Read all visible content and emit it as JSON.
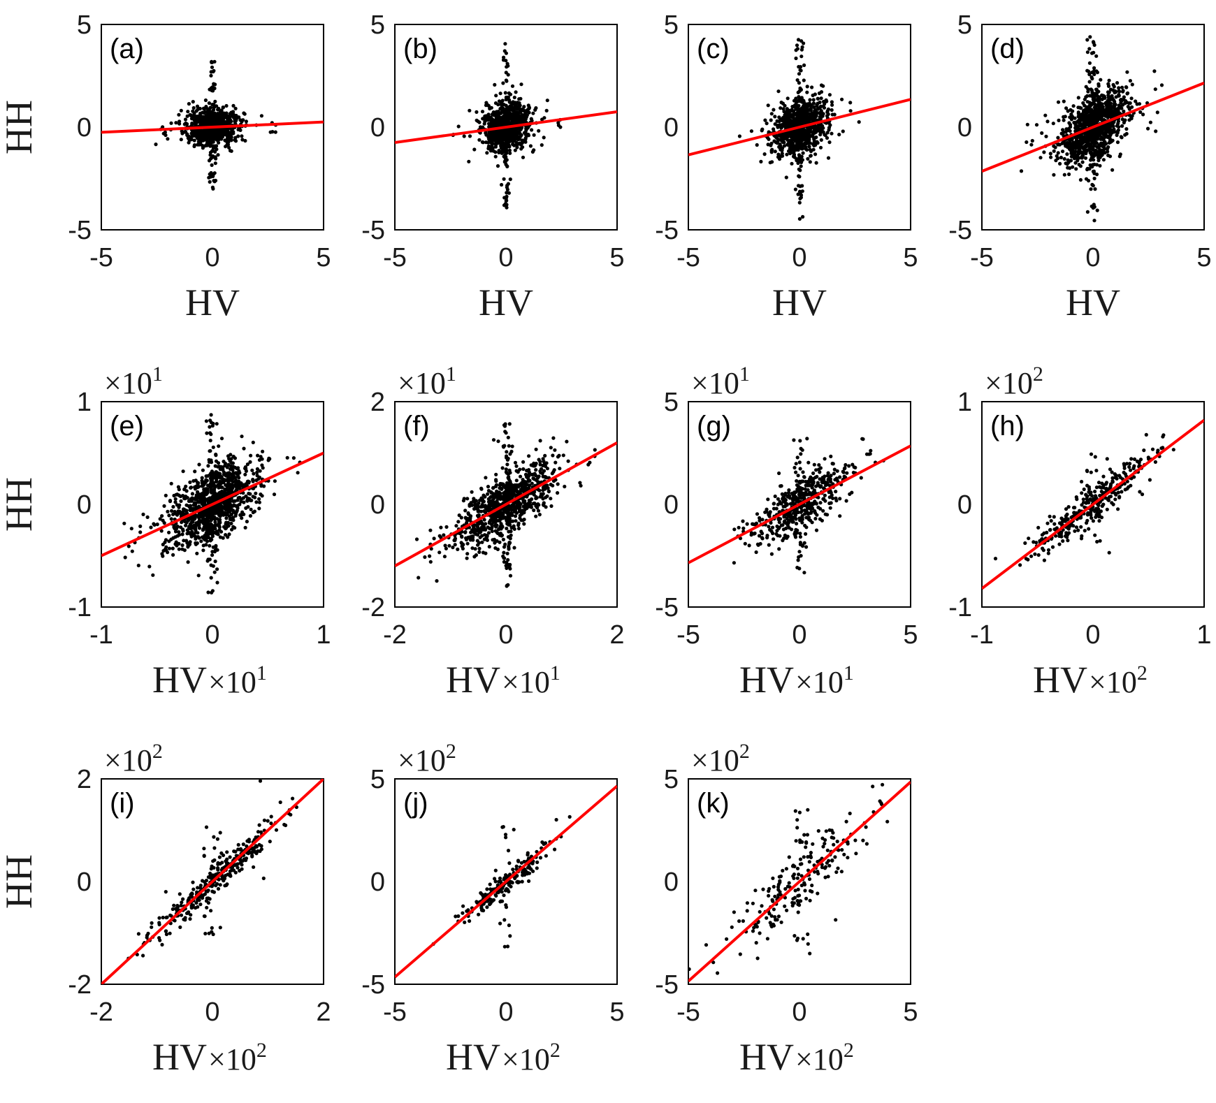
{
  "figure": {
    "y_label": "HH",
    "x_label": "HV"
  },
  "chart_data": [
    {
      "type": "scatter",
      "panel": "(a)",
      "xlim": [
        -5,
        5
      ],
      "ylim": [
        -5,
        5
      ],
      "xticks": [
        "-5",
        "0",
        "5"
      ],
      "yticks": [
        "-5",
        "0",
        "5"
      ],
      "xlabel": "HV",
      "ylabel": "HH",
      "x_exp": "",
      "y_exp": "",
      "fit": {
        "slope": 0.05,
        "intercept": 0.0
      },
      "cloud": {
        "sx": 0.55,
        "sy": 0.45,
        "rho": 0.1,
        "n": 900,
        "spike_y": 3.3,
        "spread_x": 3.0
      }
    },
    {
      "type": "scatter",
      "panel": "(b)",
      "xlim": [
        -5,
        5
      ],
      "ylim": [
        -5,
        5
      ],
      "xticks": [
        "-5",
        "0",
        "5"
      ],
      "yticks": [
        "-5",
        "0",
        "5"
      ],
      "xlabel": "HV",
      "ylabel": "",
      "x_exp": "",
      "y_exp": "",
      "fit": {
        "slope": 0.15,
        "intercept": 0.0
      },
      "cloud": {
        "sx": 0.5,
        "sy": 0.6,
        "rho": 0.2,
        "n": 900,
        "spike_y": 4.2,
        "spread_x": 2.8
      }
    },
    {
      "type": "scatter",
      "panel": "(c)",
      "xlim": [
        -5,
        5
      ],
      "ylim": [
        -5,
        5
      ],
      "xticks": [
        "-5",
        "0",
        "5"
      ],
      "yticks": [
        "-5",
        "0",
        "5"
      ],
      "xlabel": "HV",
      "ylabel": "",
      "x_exp": "",
      "y_exp": "",
      "fit": {
        "slope": 0.27,
        "intercept": 0.0
      },
      "cloud": {
        "sx": 0.6,
        "sy": 0.7,
        "rho": 0.3,
        "n": 900,
        "spike_y": 4.5,
        "spread_x": 2.8
      }
    },
    {
      "type": "scatter",
      "panel": "(d)",
      "xlim": [
        -5,
        5
      ],
      "ylim": [
        -5,
        5
      ],
      "xticks": [
        "-5",
        "0",
        "5"
      ],
      "yticks": [
        "-5",
        "0",
        "5"
      ],
      "xlabel": "HV",
      "ylabel": "",
      "x_exp": "",
      "y_exp": "",
      "fit": {
        "slope": 0.43,
        "intercept": 0.0
      },
      "cloud": {
        "sx": 0.75,
        "sy": 0.9,
        "rho": 0.45,
        "n": 1100,
        "spike_y": 4.6,
        "spread_x": 3.3
      }
    },
    {
      "type": "scatter",
      "panel": "(e)",
      "xlim": [
        -1,
        1
      ],
      "ylim": [
        -1,
        1
      ],
      "xticks": [
        "-1",
        "0",
        "1"
      ],
      "yticks": [
        "-1",
        "0",
        "1"
      ],
      "xlabel": "HV",
      "ylabel": "HH",
      "x_exp": "1",
      "y_exp": "1",
      "fit": {
        "slope": 0.5,
        "intercept": 0.0
      },
      "cloud": {
        "sx": 0.2,
        "sy": 0.2,
        "rho": 0.55,
        "n": 1100,
        "spike_y": 0.9,
        "spread_x": 0.8
      }
    },
    {
      "type": "scatter",
      "panel": "(f)",
      "xlim": [
        -2,
        2
      ],
      "ylim": [
        -2,
        2
      ],
      "xticks": [
        "-2",
        "0",
        "2"
      ],
      "yticks": [
        "-2",
        "0",
        "2"
      ],
      "xlabel": "HV",
      "ylabel": "",
      "x_exp": "1",
      "y_exp": "1",
      "fit": {
        "slope": 0.6,
        "intercept": 0.0
      },
      "cloud": {
        "sx": 0.45,
        "sy": 0.4,
        "rho": 0.7,
        "n": 900,
        "spike_y": 1.6,
        "spread_x": 1.6
      }
    },
    {
      "type": "scatter",
      "panel": "(g)",
      "xlim": [
        -5,
        5
      ],
      "ylim": [
        -5,
        5
      ],
      "xticks": [
        "-5",
        "0",
        "5"
      ],
      "yticks": [
        "-5",
        "0",
        "5"
      ],
      "xlabel": "HV",
      "ylabel": "",
      "x_exp": "1",
      "y_exp": "1",
      "fit": {
        "slope": 0.57,
        "intercept": 0.0
      },
      "cloud": {
        "sx": 1.1,
        "sy": 1.0,
        "rho": 0.75,
        "n": 500,
        "spike_y": 3.4,
        "spread_x": 4.5
      }
    },
    {
      "type": "scatter",
      "panel": "(h)",
      "xlim": [
        -1,
        1
      ],
      "ylim": [
        -1,
        1
      ],
      "xticks": [
        "-1",
        "0",
        "1"
      ],
      "yticks": [
        "-1",
        "0",
        "1"
      ],
      "xlabel": "HV",
      "ylabel": "",
      "x_exp": "2",
      "y_exp": "2",
      "fit": {
        "slope": 0.82,
        "intercept": 0.0
      },
      "cloud": {
        "sx": 0.28,
        "sy": 0.25,
        "rho": 0.93,
        "n": 350,
        "spike_y": 0.5,
        "spread_x": 0.9
      }
    },
    {
      "type": "scatter",
      "panel": "(i)",
      "xlim": [
        -2,
        2
      ],
      "ylim": [
        -2,
        2
      ],
      "xticks": [
        "-2",
        "0",
        "2"
      ],
      "yticks": [
        "-2",
        "0",
        "2"
      ],
      "xlabel": "HV",
      "ylabel": "HH",
      "x_exp": "2",
      "y_exp": "2",
      "fit": {
        "slope": 1.0,
        "intercept": 0.0
      },
      "cloud": {
        "sx": 0.55,
        "sy": 0.55,
        "rho": 0.97,
        "n": 350,
        "spike_y": 1.3,
        "spread_x": 1.2
      }
    },
    {
      "type": "scatter",
      "panel": "(j)",
      "xlim": [
        -5,
        5
      ],
      "ylim": [
        -5,
        5
      ],
      "xticks": [
        "-5",
        "0",
        "5"
      ],
      "yticks": [
        "-5",
        "0",
        "5"
      ],
      "xlabel": "HV",
      "ylabel": "",
      "x_exp": "2",
      "y_exp": "2",
      "fit": {
        "slope": 0.93,
        "intercept": 0.0
      },
      "cloud": {
        "sx": 0.9,
        "sy": 0.85,
        "rho": 0.93,
        "n": 200,
        "spike_y": 3.2,
        "spread_x": 3.2
      }
    },
    {
      "type": "scatter",
      "panel": "(k)",
      "xlim": [
        -5,
        5
      ],
      "ylim": [
        -5,
        5
      ],
      "xticks": [
        "-5",
        "0",
        "5"
      ],
      "yticks": [
        "-5",
        "0",
        "5"
      ],
      "xlabel": "HV",
      "ylabel": "",
      "x_exp": "2",
      "y_exp": "2",
      "fit": {
        "slope": 0.97,
        "intercept": 0.0
      },
      "cloud": {
        "sx": 1.7,
        "sy": 1.8,
        "rho": 0.9,
        "n": 220,
        "spike_y": 3.6,
        "spread_x": 4.5
      }
    }
  ]
}
